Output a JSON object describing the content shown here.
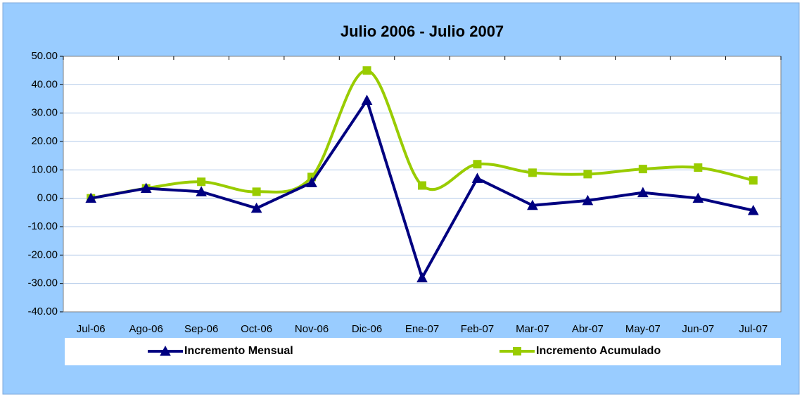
{
  "chart_data": {
    "type": "line",
    "title": "Julio 2006 - Julio 2007",
    "categories": [
      "Jul-06",
      "Ago-06",
      "Sep-06",
      "Oct-06",
      "Nov-06",
      "Dic-06",
      "Ene-07",
      "Feb-07",
      "Mar-07",
      "Abr-07",
      "May-07",
      "Jun-07",
      "Jul-07"
    ],
    "series": [
      {
        "name": "Incremento Mensual",
        "color": "#000080",
        "marker": "triangle",
        "smooth": false,
        "values": [
          0,
          3.5,
          2.3,
          -3.5,
          5.5,
          34.5,
          -28,
          7,
          -2.5,
          -0.8,
          2,
          0,
          -4.3
        ]
      },
      {
        "name": "Incremento Acumulado",
        "color": "#99cc00",
        "marker": "square",
        "smooth": true,
        "values": [
          0,
          3.5,
          5.8,
          2.3,
          7.5,
          45,
          4.5,
          12,
          9,
          8.5,
          10.3,
          10.8,
          6.3
        ]
      }
    ],
    "ylim": [
      -40,
      50
    ],
    "yticks": [
      {
        "value": -40,
        "label": "-40.00"
      },
      {
        "value": -30,
        "label": "-30.00"
      },
      {
        "value": -20,
        "label": "-20.00"
      },
      {
        "value": -10,
        "label": "-10.00"
      },
      {
        "value": 0,
        "label": "0.00"
      },
      {
        "value": 10,
        "label": "10.00"
      },
      {
        "value": 20,
        "label": "20.00"
      },
      {
        "value": 30,
        "label": "30.00"
      },
      {
        "value": 40,
        "label": "40.00"
      },
      {
        "value": 50,
        "label": "50.00"
      }
    ],
    "grid": true,
    "legend": "bottom"
  }
}
